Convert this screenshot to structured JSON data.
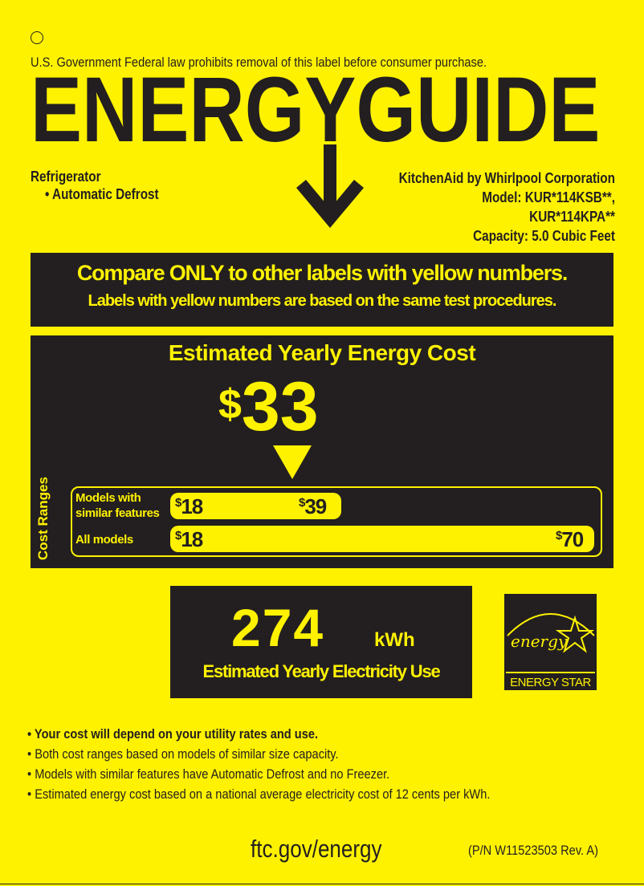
{
  "header": {
    "notice": "U.S. Government  Federal law prohibits removal of this label before consumer purchase.",
    "logo": "ENERGYGUIDE"
  },
  "appliance": {
    "type": "Refrigerator",
    "feature": "• Automatic Defrost"
  },
  "manufacturer": {
    "name": "KitchenAid by Whirlpool Corporation",
    "model_line1": "Model: KUR*114KSB**,",
    "model_line2": "KUR*114KPA**",
    "capacity": "Capacity: 5.0 Cubic Feet"
  },
  "compare": {
    "headline": "Compare ONLY to other labels with yellow numbers.",
    "subline": "Labels with yellow numbers are based on the same test procedures."
  },
  "cost": {
    "title": "Estimated Yearly Energy Cost",
    "currency": "$",
    "value": "33",
    "ranges_label": "Cost Ranges",
    "similar_label_1": "Models with",
    "similar_label_2": "similar features",
    "similar_min": "18",
    "similar_max": "39",
    "all_label": "All models",
    "all_min": "18",
    "all_max": "70"
  },
  "electricity": {
    "value": "274",
    "unit": "kWh",
    "label": "Estimated Yearly Electricity Use"
  },
  "energy_star": {
    "script": "energy",
    "label": "ENERGY STAR"
  },
  "bullets": [
    "Your cost will depend on your utility rates and use.",
    "Both cost ranges based on models of similar size capacity.",
    "Models with similar features have Automatic Defrost and no Freezer.",
    "Estimated energy cost based on a national average electricity cost of 12 cents per kWh."
  ],
  "footer": {
    "url": "ftc.gov/energy",
    "part_number": "(P/N W11523503 Rev. A)"
  },
  "colors": {
    "label_yellow": "#fff200",
    "panel_black": "#231f20"
  }
}
